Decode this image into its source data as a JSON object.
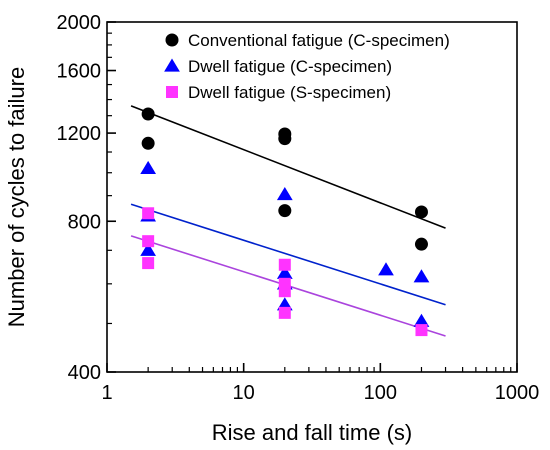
{
  "chart_data": {
    "type": "scatter",
    "title": "",
    "xlabel": "Rise and fall time (s)",
    "ylabel": "Number of cycles to failure",
    "xscale": "log",
    "yscale": "log",
    "xlim": [
      1,
      1000
    ],
    "ylim": [
      400,
      2000
    ],
    "xticks": [
      1,
      10,
      100,
      1000
    ],
    "xtick_labels": [
      "1",
      "10",
      "100",
      "1000"
    ],
    "yticks": [
      400,
      800,
      1200,
      1600,
      2000
    ],
    "ytick_labels": [
      "400",
      "800",
      "1200",
      "1600",
      "2000"
    ],
    "grid": false,
    "legend_position": "top-right",
    "series": [
      {
        "name": "Conventional fatigue (C-specimen)",
        "marker": "circle",
        "color": "#000000",
        "points": [
          [
            2,
            1310
          ],
          [
            2,
            1145
          ],
          [
            20,
            1195
          ],
          [
            20,
            1170
          ],
          [
            20,
            840
          ],
          [
            200,
            835
          ],
          [
            200,
            720
          ]
        ],
        "fit": [
          [
            1.5,
            1360
          ],
          [
            300,
            775
          ]
        ]
      },
      {
        "name": "Dwell fatigue (C-specimen)",
        "marker": "triangle",
        "color": "#0000ff",
        "points": [
          [
            2,
            1020
          ],
          [
            2,
            820
          ],
          [
            2,
            700
          ],
          [
            20,
            905
          ],
          [
            20,
            630
          ],
          [
            20,
            600
          ],
          [
            20,
            545
          ],
          [
            110,
            640
          ],
          [
            200,
            620
          ],
          [
            200,
            505
          ]
        ],
        "fit": [
          [
            1.5,
            865
          ],
          [
            300,
            545
          ]
        ]
      },
      {
        "name": "Dwell fatigue (S-specimen)",
        "marker": "square",
        "color": "#ff33ff",
        "points": [
          [
            2,
            830
          ],
          [
            2,
            730
          ],
          [
            2,
            660
          ],
          [
            20,
            655
          ],
          [
            20,
            600
          ],
          [
            20,
            580
          ],
          [
            20,
            525
          ],
          [
            200,
            485
          ]
        ],
        "fit": [
          [
            1.5,
            748
          ],
          [
            300,
            472
          ]
        ]
      }
    ]
  },
  "colors": {
    "series_1_fit": "#000000",
    "series_2_fit": "#0022cc",
    "series_3_fit": "#aa44dd"
  }
}
